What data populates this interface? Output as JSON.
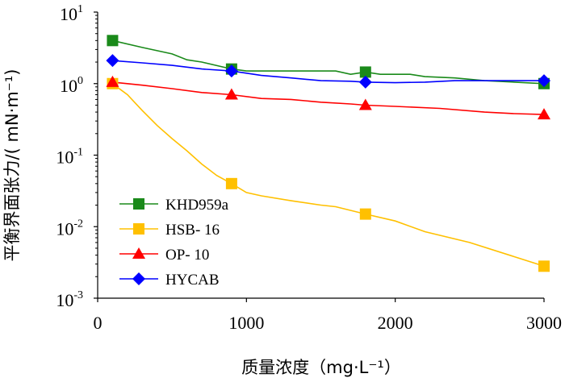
{
  "chart_data": {
    "type": "line",
    "xlabel": "质量浓度（mg·L⁻¹）",
    "ylabel": "平衡界面张力/( mN·m⁻¹)",
    "xlim": [
      0,
      3000
    ],
    "ylim": [
      0.001,
      10
    ],
    "yscale": "log",
    "grid": false,
    "legend_position": "bottom-left",
    "x_ticks": [
      {
        "value": 0,
        "label": "0"
      },
      {
        "value": 1000,
        "label": "1000"
      },
      {
        "value": 2000,
        "label": "2000"
      },
      {
        "value": 3000,
        "label": "3000"
      }
    ],
    "y_ticks": [
      {
        "value": 10,
        "base": "10",
        "exp": "1"
      },
      {
        "value": 1,
        "base": "10",
        "exp": "0"
      },
      {
        "value": 0.1,
        "base": "10",
        "exp": "-1"
      },
      {
        "value": 0.01,
        "base": "10",
        "exp": "-2"
      },
      {
        "value": 0.001,
        "base": "10",
        "exp": "-3"
      }
    ],
    "series": [
      {
        "name": "KHD959a",
        "color": "#1a8a1a",
        "marker": "square",
        "markers": [
          {
            "x": 100,
            "y": 4.0
          },
          {
            "x": 900,
            "y": 1.6
          },
          {
            "x": 1800,
            "y": 1.45
          },
          {
            "x": 3000,
            "y": 1.0
          }
        ],
        "line": [
          [
            100,
            4.0
          ],
          [
            300,
            3.2
          ],
          [
            500,
            2.6
          ],
          [
            600,
            2.15
          ],
          [
            700,
            2.0
          ],
          [
            900,
            1.6
          ],
          [
            1000,
            1.5
          ],
          [
            1200,
            1.5
          ],
          [
            1600,
            1.5
          ],
          [
            1700,
            1.35
          ],
          [
            1800,
            1.45
          ],
          [
            1900,
            1.35
          ],
          [
            2100,
            1.35
          ],
          [
            2200,
            1.25
          ],
          [
            2400,
            1.2
          ],
          [
            2600,
            1.1
          ],
          [
            2800,
            1.05
          ],
          [
            3000,
            1.0
          ]
        ]
      },
      {
        "name": "HSB- 16",
        "color": "#ffc000",
        "marker": "square",
        "markers": [
          {
            "x": 100,
            "y": 1.0
          },
          {
            "x": 900,
            "y": 0.04
          },
          {
            "x": 1800,
            "y": 0.015
          },
          {
            "x": 3000,
            "y": 0.0028
          }
        ],
        "line": [
          [
            100,
            1.0
          ],
          [
            200,
            0.7
          ],
          [
            300,
            0.42
          ],
          [
            400,
            0.26
          ],
          [
            500,
            0.17
          ],
          [
            600,
            0.115
          ],
          [
            700,
            0.075
          ],
          [
            800,
            0.052
          ],
          [
            900,
            0.04
          ],
          [
            1000,
            0.03
          ],
          [
            1100,
            0.027
          ],
          [
            1300,
            0.023
          ],
          [
            1500,
            0.02
          ],
          [
            1600,
            0.019
          ],
          [
            1800,
            0.015
          ],
          [
            2000,
            0.012
          ],
          [
            2200,
            0.0085
          ],
          [
            2500,
            0.006
          ],
          [
            2800,
            0.0038
          ],
          [
            3000,
            0.0028
          ]
        ]
      },
      {
        "name": "OP- 10",
        "color": "#ff0000",
        "marker": "triangle",
        "markers": [
          {
            "x": 100,
            "y": 1.05
          },
          {
            "x": 900,
            "y": 0.7
          },
          {
            "x": 1800,
            "y": 0.5
          },
          {
            "x": 3000,
            "y": 0.37
          }
        ],
        "line": [
          [
            100,
            1.05
          ],
          [
            300,
            0.95
          ],
          [
            500,
            0.85
          ],
          [
            700,
            0.75
          ],
          [
            900,
            0.7
          ],
          [
            1100,
            0.62
          ],
          [
            1300,
            0.6
          ],
          [
            1500,
            0.55
          ],
          [
            1700,
            0.52
          ],
          [
            1800,
            0.5
          ],
          [
            2000,
            0.48
          ],
          [
            2300,
            0.45
          ],
          [
            2600,
            0.4
          ],
          [
            2800,
            0.38
          ],
          [
            3000,
            0.37
          ]
        ]
      },
      {
        "name": "HYCAB",
        "color": "#0000ff",
        "marker": "diamond",
        "markers": [
          {
            "x": 100,
            "y": 2.1
          },
          {
            "x": 900,
            "y": 1.5
          },
          {
            "x": 1800,
            "y": 1.05
          },
          {
            "x": 3000,
            "y": 1.1
          }
        ],
        "line": [
          [
            100,
            2.1
          ],
          [
            300,
            1.95
          ],
          [
            500,
            1.8
          ],
          [
            700,
            1.6
          ],
          [
            900,
            1.5
          ],
          [
            1100,
            1.3
          ],
          [
            1300,
            1.2
          ],
          [
            1500,
            1.1
          ],
          [
            1700,
            1.08
          ],
          [
            1800,
            1.05
          ],
          [
            2000,
            1.03
          ],
          [
            2200,
            1.05
          ],
          [
            2400,
            1.1
          ],
          [
            2600,
            1.1
          ],
          [
            2800,
            1.1
          ],
          [
            3000,
            1.1
          ]
        ]
      }
    ]
  }
}
